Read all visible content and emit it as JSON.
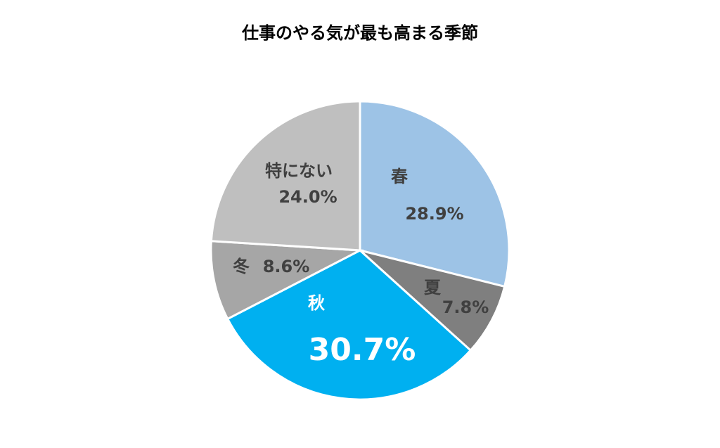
{
  "chart_data": {
    "type": "pie",
    "title": "仕事のやる気が最も高まる季節",
    "categories": [
      "春",
      "夏",
      "秋",
      "冬",
      "特にない"
    ],
    "values": [
      28.9,
      7.8,
      30.7,
      8.6,
      24.0
    ],
    "value_labels": [
      "28.9%",
      "7.8%",
      "30.7%",
      "8.6%",
      "24.0%"
    ],
    "colors": [
      "#9dc3e6",
      "#7f7f7f",
      "#00b0f0",
      "#a6a6a6",
      "#bfbfbf"
    ]
  }
}
